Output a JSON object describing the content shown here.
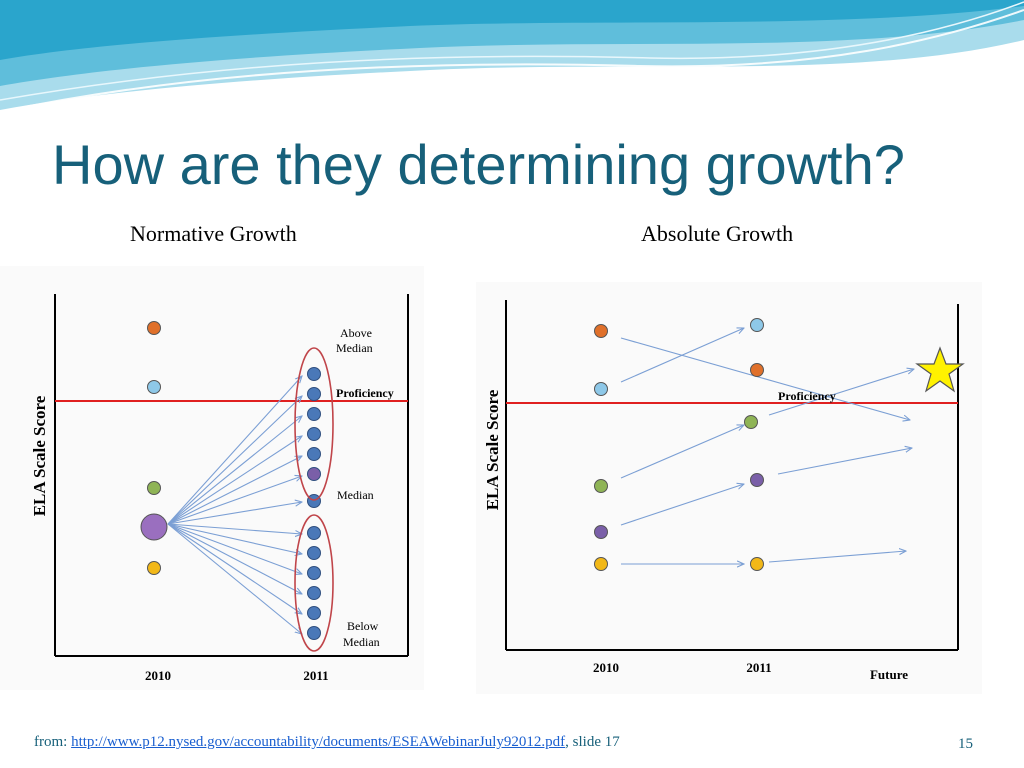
{
  "slide": {
    "title": "How are they determining growth?",
    "page_number": "15"
  },
  "left": {
    "subtitle": "Normative Growth",
    "y_axis_label": "ELA Scale Score",
    "x_ticks": [
      "2010",
      "2011"
    ],
    "annotations": {
      "above_line1": "Above",
      "above_line2": "Median",
      "proficiency": "Proficiency",
      "median": "Median",
      "below_line1": "Below",
      "below_line2": "Median"
    }
  },
  "right": {
    "subtitle": "Absolute Growth",
    "y_axis_label": "ELA Scale Score",
    "x_ticks": [
      "2010",
      "2011",
      "Future"
    ],
    "annotations": {
      "proficiency": "Proficiency"
    }
  },
  "footer": {
    "prefix": "from: ",
    "link": "http://www.p12.nysed.gov/accountability/documents/ESEAWebinarJuly92012.pdf",
    "suffix": ", slide 17"
  },
  "colors": {
    "title": "#17607a",
    "proficiency_line": "#e02020",
    "arrow": "#7b9fd4",
    "orange": "#e0702a",
    "light_blue": "#8ec8e8",
    "green": "#8fb456",
    "purple": "#7a5fa8",
    "yellow": "#f2b818",
    "dark_blue": "#4a78b8",
    "star": "#fff200"
  }
}
